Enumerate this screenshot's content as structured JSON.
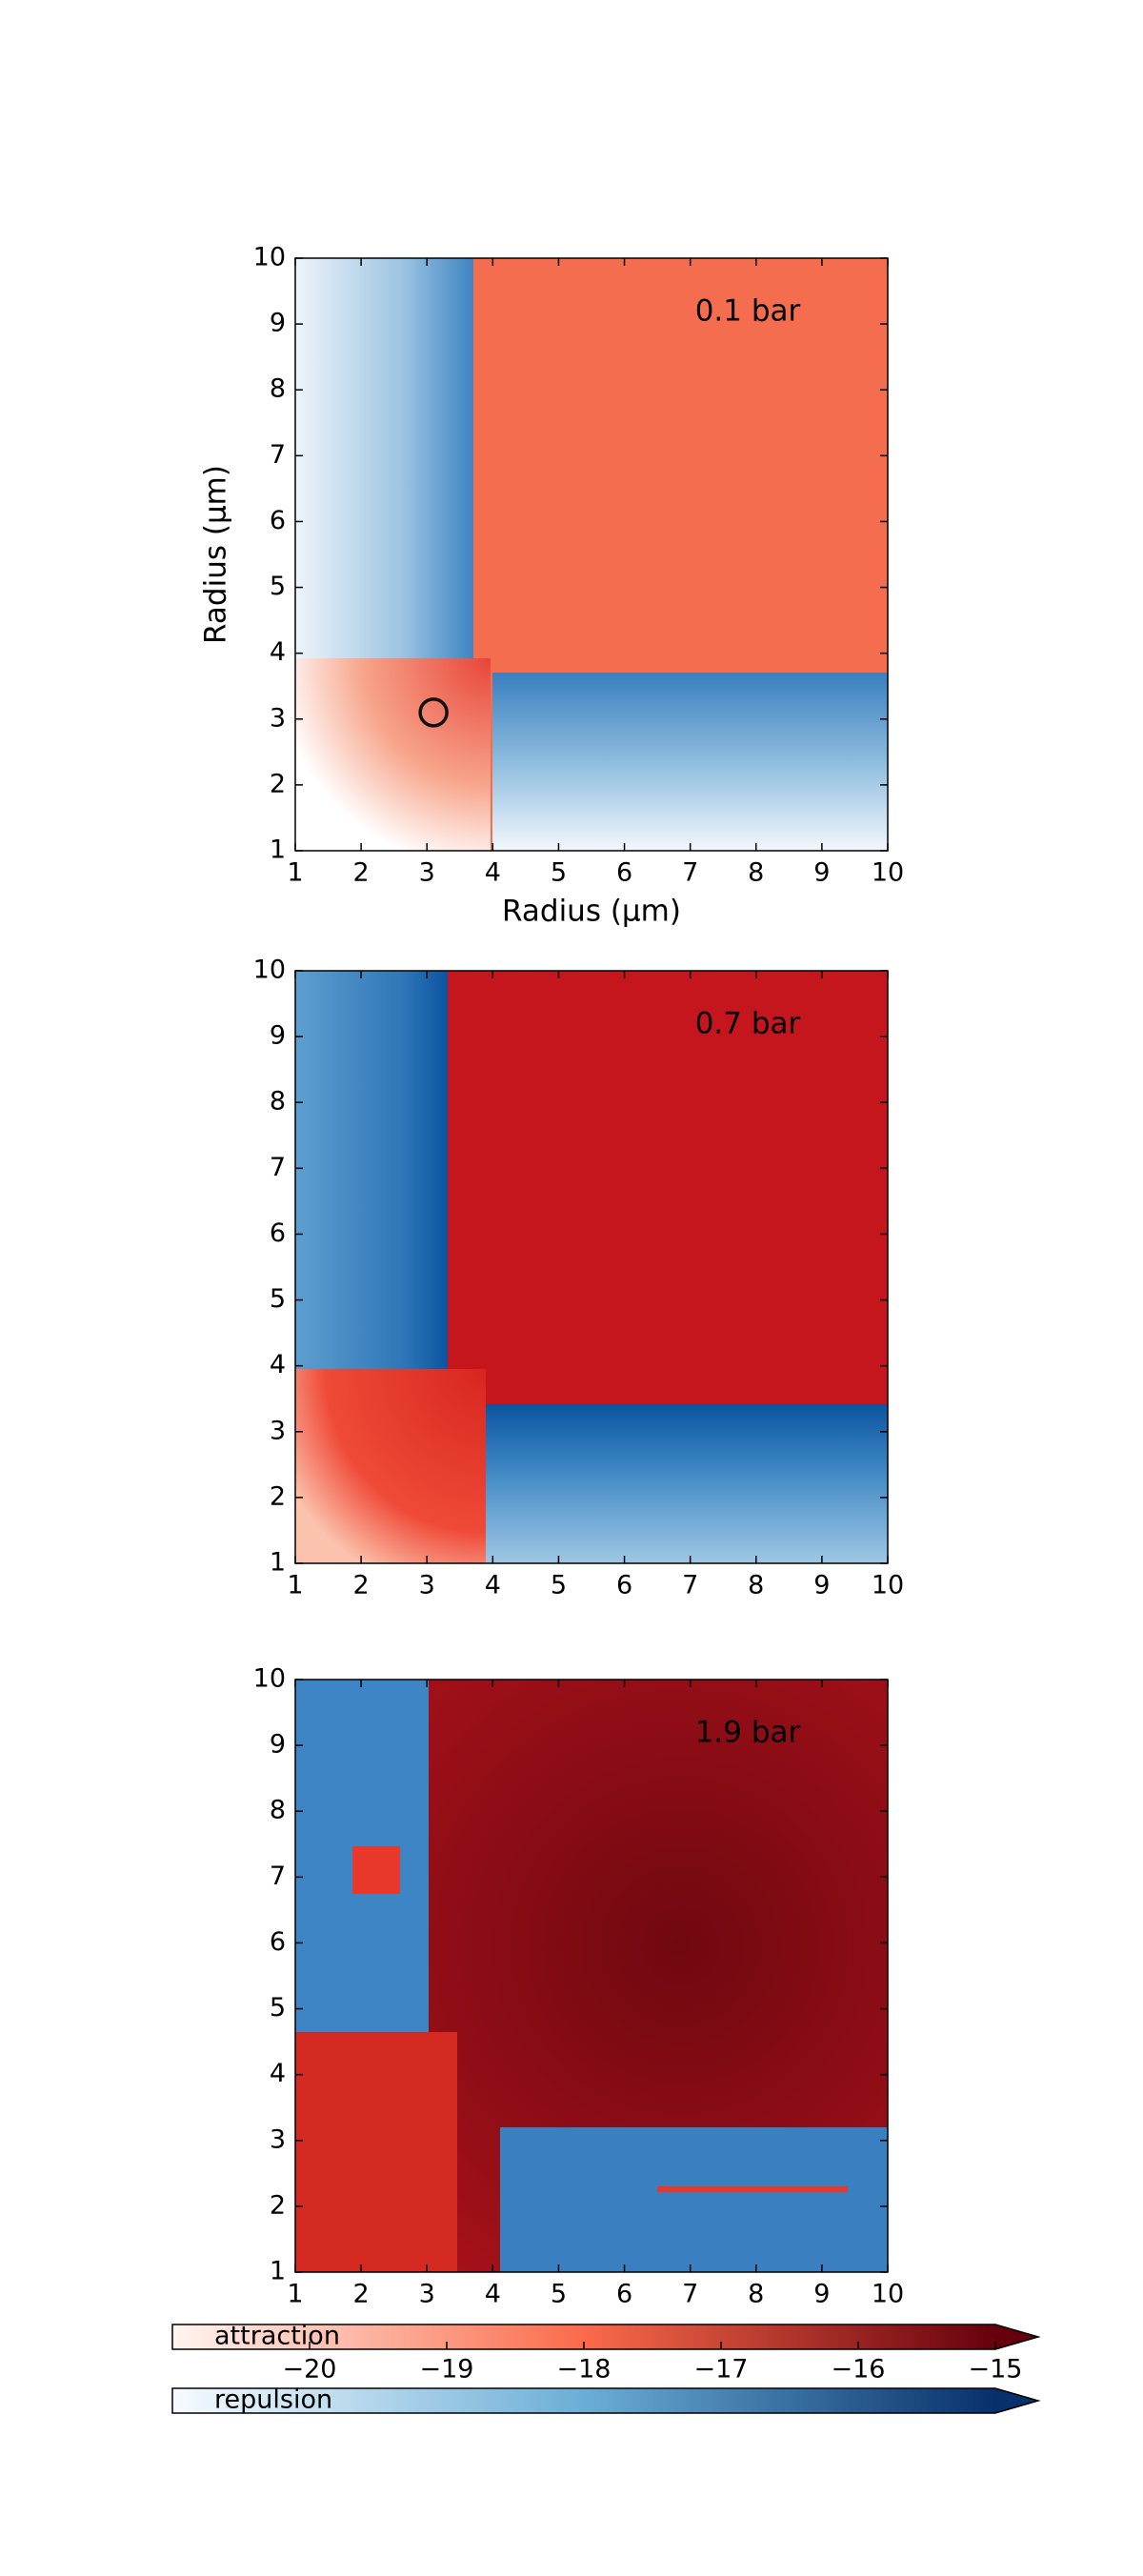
{
  "chart_data": [
    {
      "type": "heatmap",
      "annotation": "0.1 bar",
      "annotation_color": "#222222",
      "xlabel": "Radius (μm)",
      "ylabel": "Radius (μm)",
      "xlim": [
        1,
        10
      ],
      "ylim": [
        1,
        10
      ],
      "xticks": [
        1,
        2,
        3,
        4,
        5,
        6,
        7,
        8,
        9,
        10
      ],
      "yticks": [
        1,
        2,
        3,
        4,
        5,
        6,
        7,
        8,
        9,
        10
      ],
      "marker": {
        "x": 3.1,
        "y": 3.1
      }
    },
    {
      "type": "heatmap",
      "annotation": "0.7 bar",
      "annotation_color": "#f2f2f2",
      "xlim": [
        1,
        10
      ],
      "ylim": [
        1,
        10
      ],
      "xticks": [
        1,
        2,
        3,
        4,
        5,
        6,
        7,
        8,
        9,
        10
      ],
      "yticks": [
        1,
        2,
        3,
        4,
        5,
        6,
        7,
        8,
        9,
        10
      ]
    },
    {
      "type": "heatmap",
      "annotation": "1.9 bar",
      "annotation_color": "#f2f2f2",
      "xlim": [
        1,
        10
      ],
      "ylim": [
        1,
        10
      ],
      "xticks": [
        1,
        2,
        3,
        4,
        5,
        6,
        7,
        8,
        9,
        10
      ],
      "yticks": [
        1,
        2,
        3,
        4,
        5,
        6,
        7,
        8,
        9,
        10
      ]
    },
    {
      "type": "colorbar",
      "xlim": [
        -21,
        -15
      ],
      "xticks": [
        {
          "value": -20,
          "label": "−20"
        },
        {
          "value": -19,
          "label": "−19"
        },
        {
          "value": -18,
          "label": "−18"
        },
        {
          "value": -17,
          "label": "−17"
        },
        {
          "value": -16,
          "label": "−16"
        },
        {
          "value": -15,
          "label": "−15"
        }
      ],
      "series": [
        {
          "name": "attraction",
          "colors": [
            "#fff5f0",
            "#fb6a4a",
            "#67000d"
          ]
        },
        {
          "name": "repulsion",
          "colors": [
            "#f7fbff",
            "#6baed6",
            "#08306b"
          ]
        }
      ]
    }
  ]
}
